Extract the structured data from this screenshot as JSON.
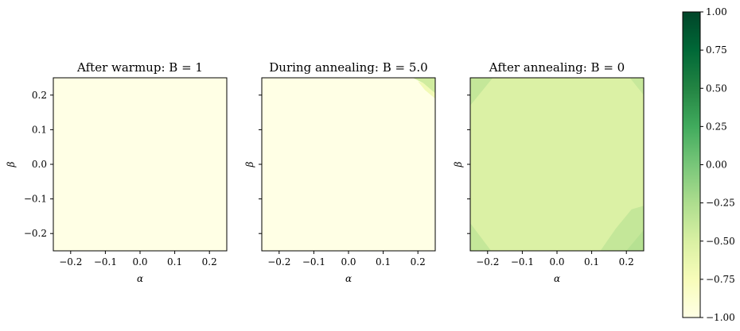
{
  "chart_data": [
    {
      "type": "heatmap",
      "title": "After warmup: B = 1",
      "xlabel": "α",
      "ylabel": "β",
      "xlim": [
        -0.25,
        0.25
      ],
      "ylim": [
        -0.25,
        0.25
      ],
      "xticks": [
        -0.2,
        -0.1,
        0.0,
        0.1,
        0.2
      ],
      "yticks": [
        -0.2,
        -0.1,
        0.0,
        0.1,
        0.2
      ],
      "xtick_labels": [
        "−0.2",
        "−0.1",
        "0.0",
        "0.1",
        "0.2"
      ],
      "ytick_labels": [
        "−0.2",
        "−0.1",
        "0.0",
        "0.1",
        "0.2"
      ],
      "show_y_tick_labels": true,
      "base_value": -1.0,
      "features": []
    },
    {
      "type": "heatmap",
      "title": "During annealing: B = 5.0",
      "xlabel": "α",
      "ylabel": "β",
      "xlim": [
        -0.25,
        0.25
      ],
      "ylim": [
        -0.25,
        0.25
      ],
      "xticks": [
        -0.2,
        -0.1,
        0.0,
        0.1,
        0.2
      ],
      "yticks": [
        -0.2,
        -0.1,
        0.0,
        0.1,
        0.2
      ],
      "xtick_labels": [
        "−0.2",
        "−0.1",
        "0.0",
        "0.1",
        "0.2"
      ],
      "ytick_labels": [
        "−0.2",
        "−0.1",
        "0.0",
        "0.1",
        "0.2"
      ],
      "show_y_tick_labels": false,
      "base_value": -1.0,
      "features": [
        {
          "region": "top-right corner",
          "value": -0.45,
          "vertices": [
            [
              0.185,
              0.25
            ],
            [
              0.25,
              0.25
            ],
            [
              0.25,
              0.205
            ],
            [
              0.215,
              0.235
            ]
          ]
        },
        {
          "region": "top-right corner",
          "value": -0.7,
          "vertices": [
            [
              0.2,
              0.24
            ],
            [
              0.215,
              0.235
            ],
            [
              0.25,
              0.205
            ],
            [
              0.25,
              0.19
            ],
            [
              0.22,
              0.215
            ]
          ]
        }
      ]
    },
    {
      "type": "heatmap",
      "title": "After annealing: B = 0",
      "xlabel": "α",
      "ylabel": "β",
      "xlim": [
        -0.25,
        0.25
      ],
      "ylim": [
        -0.25,
        0.25
      ],
      "xticks": [
        -0.2,
        -0.1,
        0.0,
        0.1,
        0.2
      ],
      "yticks": [
        -0.2,
        -0.1,
        0.0,
        0.1,
        0.2
      ],
      "xtick_labels": [
        "−0.2",
        "−0.1",
        "0.0",
        "0.1",
        "0.2"
      ],
      "ytick_labels": [
        "−0.2",
        "−0.1",
        "0.0",
        "0.1",
        "0.2"
      ],
      "show_y_tick_labels": false,
      "base_value": -0.52,
      "features": [
        {
          "region": "top-left corner",
          "value": -0.38,
          "vertices": [
            [
              -0.25,
              0.25
            ],
            [
              -0.185,
              0.25
            ],
            [
              -0.25,
              0.17
            ]
          ]
        },
        {
          "region": "top-right corner",
          "value": -0.4,
          "vertices": [
            [
              0.21,
              0.25
            ],
            [
              0.25,
              0.25
            ],
            [
              0.25,
              0.2
            ]
          ]
        },
        {
          "region": "bottom-left corner",
          "value": -0.38,
          "vertices": [
            [
              -0.25,
              -0.17
            ],
            [
              -0.25,
              -0.25
            ],
            [
              -0.19,
              -0.25
            ]
          ]
        },
        {
          "region": "bottom-right corner",
          "value": -0.38,
          "vertices": [
            [
              0.125,
              -0.25
            ],
            [
              0.25,
              -0.25
            ],
            [
              0.25,
              -0.12
            ],
            [
              0.215,
              -0.13
            ],
            [
              0.17,
              -0.185
            ]
          ]
        },
        {
          "region": "bottom-right corner",
          "value": -0.3,
          "vertices": [
            [
              0.2,
              -0.25
            ],
            [
              0.25,
              -0.25
            ],
            [
              0.25,
              -0.19
            ]
          ]
        }
      ]
    }
  ],
  "colorbar": {
    "colormap": "YlGn",
    "vmin": -1.0,
    "vmax": 1.0,
    "ticks": [
      1.0,
      0.75,
      0.5,
      0.25,
      0.0,
      -0.25,
      -0.5,
      -0.75,
      -1.0
    ],
    "tick_labels": [
      "1.00",
      "0.75",
      "0.50",
      "0.25",
      "0.00",
      "−0.25",
      "−0.50",
      "−0.75",
      "−1.00"
    ],
    "colors": [
      "#ffffe5",
      "#f7fcb9",
      "#d9f0a3",
      "#addd8e",
      "#78c679",
      "#41ab5d",
      "#238443",
      "#006837",
      "#004529"
    ]
  }
}
